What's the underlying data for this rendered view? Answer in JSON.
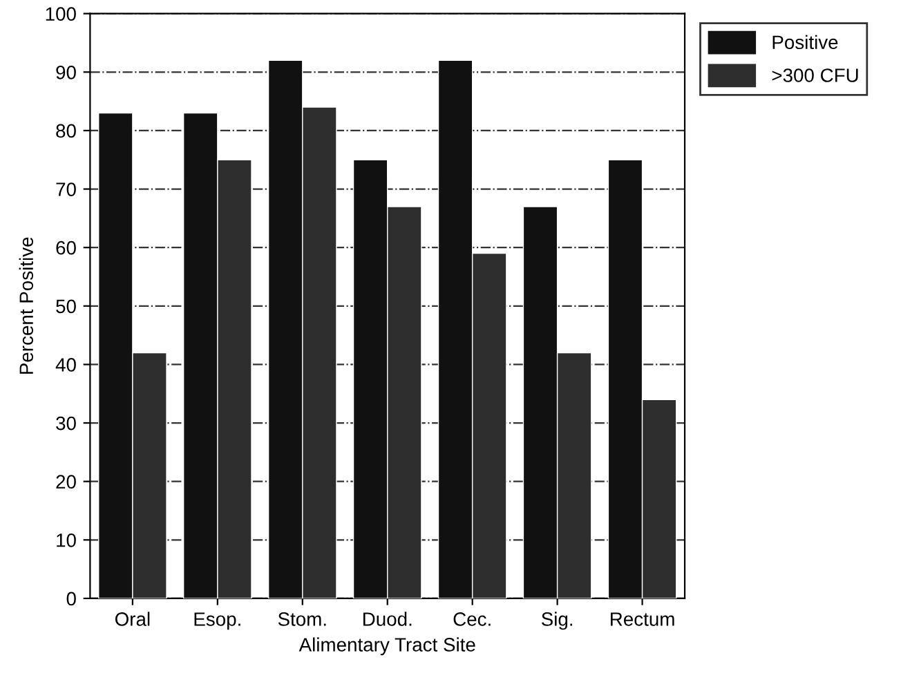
{
  "chart_data": {
    "type": "bar",
    "xlabel": "Alimentary Tract Site",
    "ylabel": "Percent Positive",
    "categories": [
      "Oral",
      "Esop.",
      "Stom.",
      "Duod.",
      "Cec.",
      "Sig.",
      "Rectum"
    ],
    "series": [
      {
        "name": "Positive",
        "color": "#111111",
        "values": [
          83,
          83,
          92,
          75,
          92,
          67,
          75
        ]
      },
      {
        "name": ">300 CFU",
        "color": "#2e2e2e",
        "values": [
          42,
          75,
          84,
          67,
          59,
          42,
          34
        ]
      }
    ],
    "ylim": [
      0,
      100
    ],
    "yticks": [
      0,
      10,
      20,
      30,
      40,
      50,
      60,
      70,
      80,
      90,
      100
    ],
    "grid": "y",
    "legend": "top right"
  }
}
